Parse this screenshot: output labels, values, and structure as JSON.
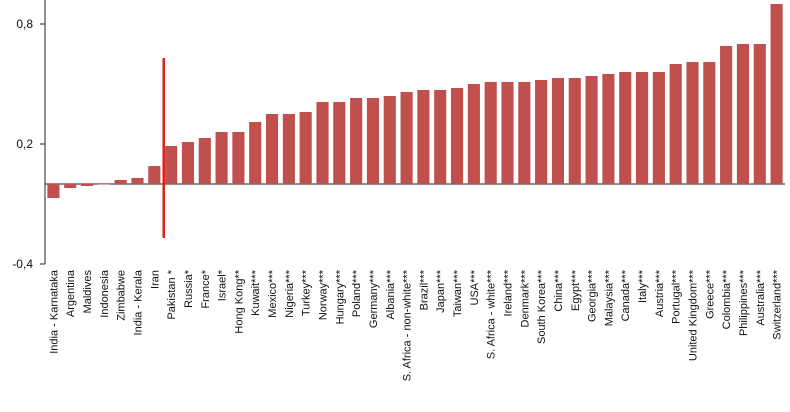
{
  "chart_data": {
    "type": "bar",
    "title": "",
    "xlabel": "",
    "ylabel": "",
    "ylim": [
      -0.4,
      0.92
    ],
    "yticks": [
      -0.4,
      0.2,
      0.8
    ],
    "ytick_labels": [
      "-0,4",
      "0,2",
      "0,8"
    ],
    "grid": false,
    "legend": "none",
    "bar_color": "#c0504d",
    "marker_line_color": "#e0201b",
    "marker_line_after_category": "Iran",
    "categories": [
      "India - Karnataka",
      "Argentina",
      "Maldives",
      "Indonesia",
      "Zimbabwe",
      "India - Kerala",
      "Iran",
      "Pakistan *",
      "Russia*",
      "France*",
      "Israel*",
      "Hong Kong**",
      "Kuwait***",
      "Mexico***",
      "Nigeria***",
      "Turkey***",
      "Norway***",
      "Hungary***",
      "Poland***",
      "Germany***",
      "Albania***",
      "S. Africa - non-white***",
      "Brazil***",
      "Japan***",
      "Taiwan***",
      "USA***",
      "S. Africa - white***",
      "Ireland***",
      "Denmark***",
      "South Korea***",
      "China***",
      "Egypt***",
      "Georgia***",
      "Malaysia***",
      "Canada***",
      "Italy***",
      "Austria***",
      "Portugal***",
      "United Kingdom***",
      "Greece***",
      "Colombia***",
      "Philippines***",
      "Australia***",
      "Switzerland***"
    ],
    "values": [
      -0.07,
      -0.02,
      -0.01,
      0.0,
      0.02,
      0.03,
      0.09,
      0.19,
      0.21,
      0.23,
      0.26,
      0.26,
      0.31,
      0.35,
      0.35,
      0.36,
      0.41,
      0.41,
      0.43,
      0.43,
      0.44,
      0.46,
      0.47,
      0.47,
      0.48,
      0.5,
      0.51,
      0.51,
      0.51,
      0.52,
      0.53,
      0.53,
      0.54,
      0.55,
      0.56,
      0.56,
      0.56,
      0.6,
      0.61,
      0.61,
      0.69,
      0.7,
      0.7,
      0.9
    ]
  }
}
